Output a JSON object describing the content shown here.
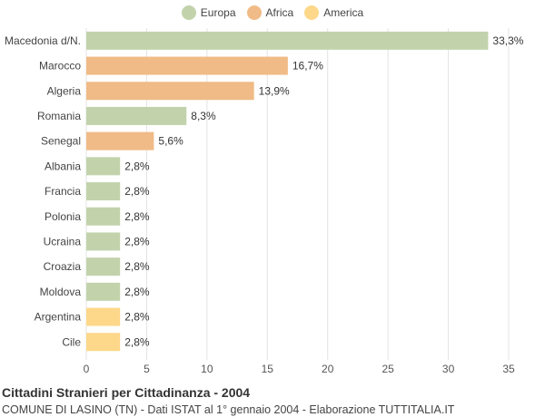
{
  "legend": [
    {
      "label": "Europa",
      "color": "#c2d3ac"
    },
    {
      "label": "Africa",
      "color": "#f0bb87"
    },
    {
      "label": "America",
      "color": "#fdd88a"
    }
  ],
  "chart_data": {
    "type": "bar",
    "orientation": "horizontal",
    "categories": [
      "Macedonia d/N.",
      "Marocco",
      "Algeria",
      "Romania",
      "Senegal",
      "Albania",
      "Francia",
      "Polonia",
      "Ucraina",
      "Croazia",
      "Moldova",
      "Argentina",
      "Cile"
    ],
    "values": [
      33.3,
      16.7,
      13.9,
      8.3,
      5.6,
      2.8,
      2.8,
      2.8,
      2.8,
      2.8,
      2.8,
      2.8,
      2.8
    ],
    "labels": [
      "33,3%",
      "16,7%",
      "13,9%",
      "8,3%",
      "5,6%",
      "2,8%",
      "2,8%",
      "2,8%",
      "2,8%",
      "2,8%",
      "2,8%",
      "2,8%",
      "2,8%"
    ],
    "groups": [
      "Europa",
      "Africa",
      "Africa",
      "Europa",
      "Africa",
      "Europa",
      "Europa",
      "Europa",
      "Europa",
      "Europa",
      "Europa",
      "America",
      "America"
    ],
    "xlim": [
      0,
      35
    ],
    "xticks": [
      0,
      5,
      10,
      15,
      20,
      25,
      30,
      35
    ],
    "grid": true,
    "legend_position": "top-center"
  },
  "footer": {
    "title": "Cittadini Stranieri per Cittadinanza - 2004",
    "subtitle": "COMUNE DI LASINO (TN) - Dati ISTAT al 1° gennaio 2004 - Elaborazione TUTTITALIA.IT"
  }
}
